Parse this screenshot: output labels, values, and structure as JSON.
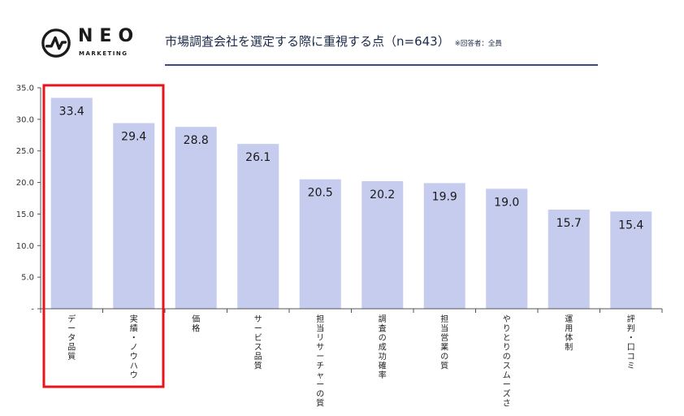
{
  "logo": {
    "wordmark": "NEO",
    "tagline": "MARKETING"
  },
  "header": {
    "title": "市場調査会社を選定する際に重視する点（n=643）",
    "note": "※回答者：全員"
  },
  "colors": {
    "bar": "#c5ccee",
    "highlight_box": "#e8141b",
    "axis": "#555555",
    "title_rule": "#3b4a86"
  },
  "chart_data": {
    "type": "bar",
    "categories": [
      "データ品質",
      "実績・ノウハウ",
      "価格",
      "サービス品質",
      "担当リサーチャーの質",
      "調査の成功確率",
      "担当営業の質",
      "やりとりのスムーズさ",
      "運用体制",
      "評判・口コミ"
    ],
    "values": [
      33.4,
      29.4,
      28.8,
      26.1,
      20.5,
      20.2,
      19.9,
      19.0,
      15.7,
      15.4
    ],
    "value_labels": [
      "33.4",
      "29.4",
      "28.8",
      "26.1",
      "20.5",
      "20.2",
      "19.9",
      "19.0",
      "15.7",
      "15.4"
    ],
    "y_ticks": [
      "-",
      "5.0",
      "10.0",
      "15.0",
      "20.0",
      "25.0",
      "30.0",
      "35.0"
    ],
    "ylim": [
      0,
      35
    ],
    "grid": false,
    "highlight": [
      "データ品質",
      "実績・ノウハウ"
    ]
  }
}
